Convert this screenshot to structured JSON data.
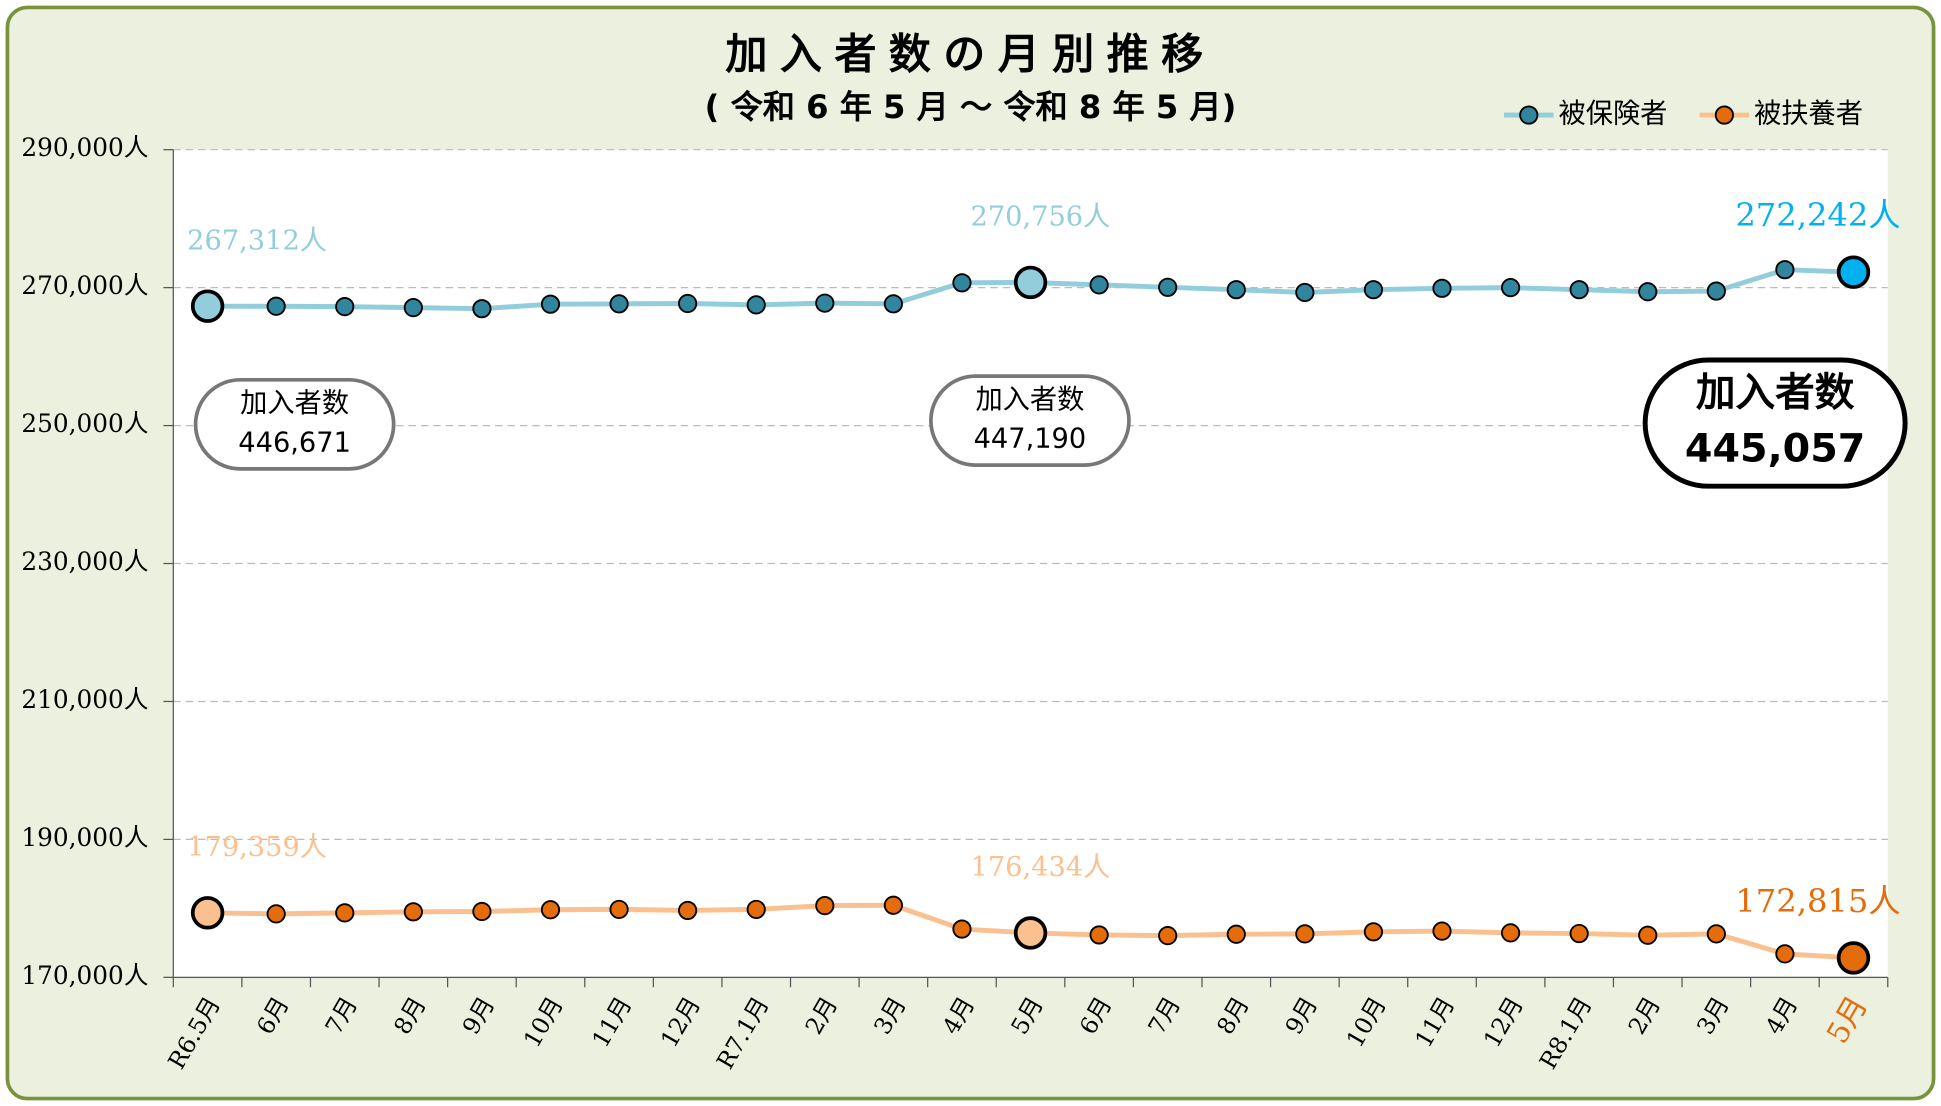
{
  "chart_data": {
    "type": "line",
    "title": "加入者数の月別推移",
    "subtitle": "( 令和 6 年 5 月 ～ 令和 8 年 5 月)",
    "categories": [
      "R6.5月",
      "6月",
      "7月",
      "8月",
      "9月",
      "10月",
      "11月",
      "12月",
      "R7.1月",
      "2月",
      "3月",
      "4月",
      "5月",
      "6月",
      "7月",
      "8月",
      "9月",
      "10月",
      "11月",
      "12月",
      "R8.1月",
      "2月",
      "3月",
      "4月",
      "5月"
    ],
    "series": [
      {
        "name": "被保険者",
        "color": "#92cddc",
        "marker_color": "#31859c",
        "values": [
          267312,
          267300,
          267250,
          267100,
          266950,
          267600,
          267650,
          267700,
          267500,
          267750,
          267650,
          270700,
          270756,
          270400,
          270050,
          269700,
          269300,
          269700,
          269900,
          270000,
          269700,
          269400,
          269500,
          272600,
          272242
        ],
        "value_labels": [
          "267,312人",
          null,
          null,
          null,
          null,
          null,
          null,
          null,
          null,
          null,
          null,
          null,
          "270,756人",
          null,
          null,
          null,
          null,
          null,
          null,
          null,
          null,
          null,
          null,
          null,
          "272,242人"
        ]
      },
      {
        "name": "被扶養者",
        "color": "#fac090",
        "marker_color": "#e46c0a",
        "values": [
          179359,
          179200,
          179350,
          179500,
          179550,
          179800,
          179850,
          179700,
          179850,
          180400,
          180450,
          177000,
          176434,
          176150,
          176050,
          176250,
          176300,
          176600,
          176700,
          176450,
          176350,
          176100,
          176300,
          173400,
          172815
        ],
        "value_labels": [
          "179,359人",
          null,
          null,
          null,
          null,
          null,
          null,
          null,
          null,
          null,
          null,
          null,
          "176,434人",
          null,
          null,
          null,
          null,
          null,
          null,
          null,
          null,
          null,
          null,
          null,
          "172,815人"
        ]
      }
    ],
    "ylim": [
      170000,
      290000
    ],
    "yticks": [
      {
        "value": 170000,
        "label": "170,000人"
      },
      {
        "value": 190000,
        "label": "190,000人"
      },
      {
        "value": 210000,
        "label": "210,000人"
      },
      {
        "value": 230000,
        "label": "230,000人"
      },
      {
        "value": 250000,
        "label": "250,000人"
      },
      {
        "value": 270000,
        "label": "270,000人"
      },
      {
        "value": 290000,
        "label": "290,000人"
      }
    ],
    "grid": true,
    "legend": "top-right",
    "annotations": [
      {
        "label": "加入者数",
        "value": "446,671"
      },
      {
        "label": "加入者数",
        "value": "447,190"
      },
      {
        "label": "加入者数",
        "value": "445,057"
      }
    ]
  }
}
